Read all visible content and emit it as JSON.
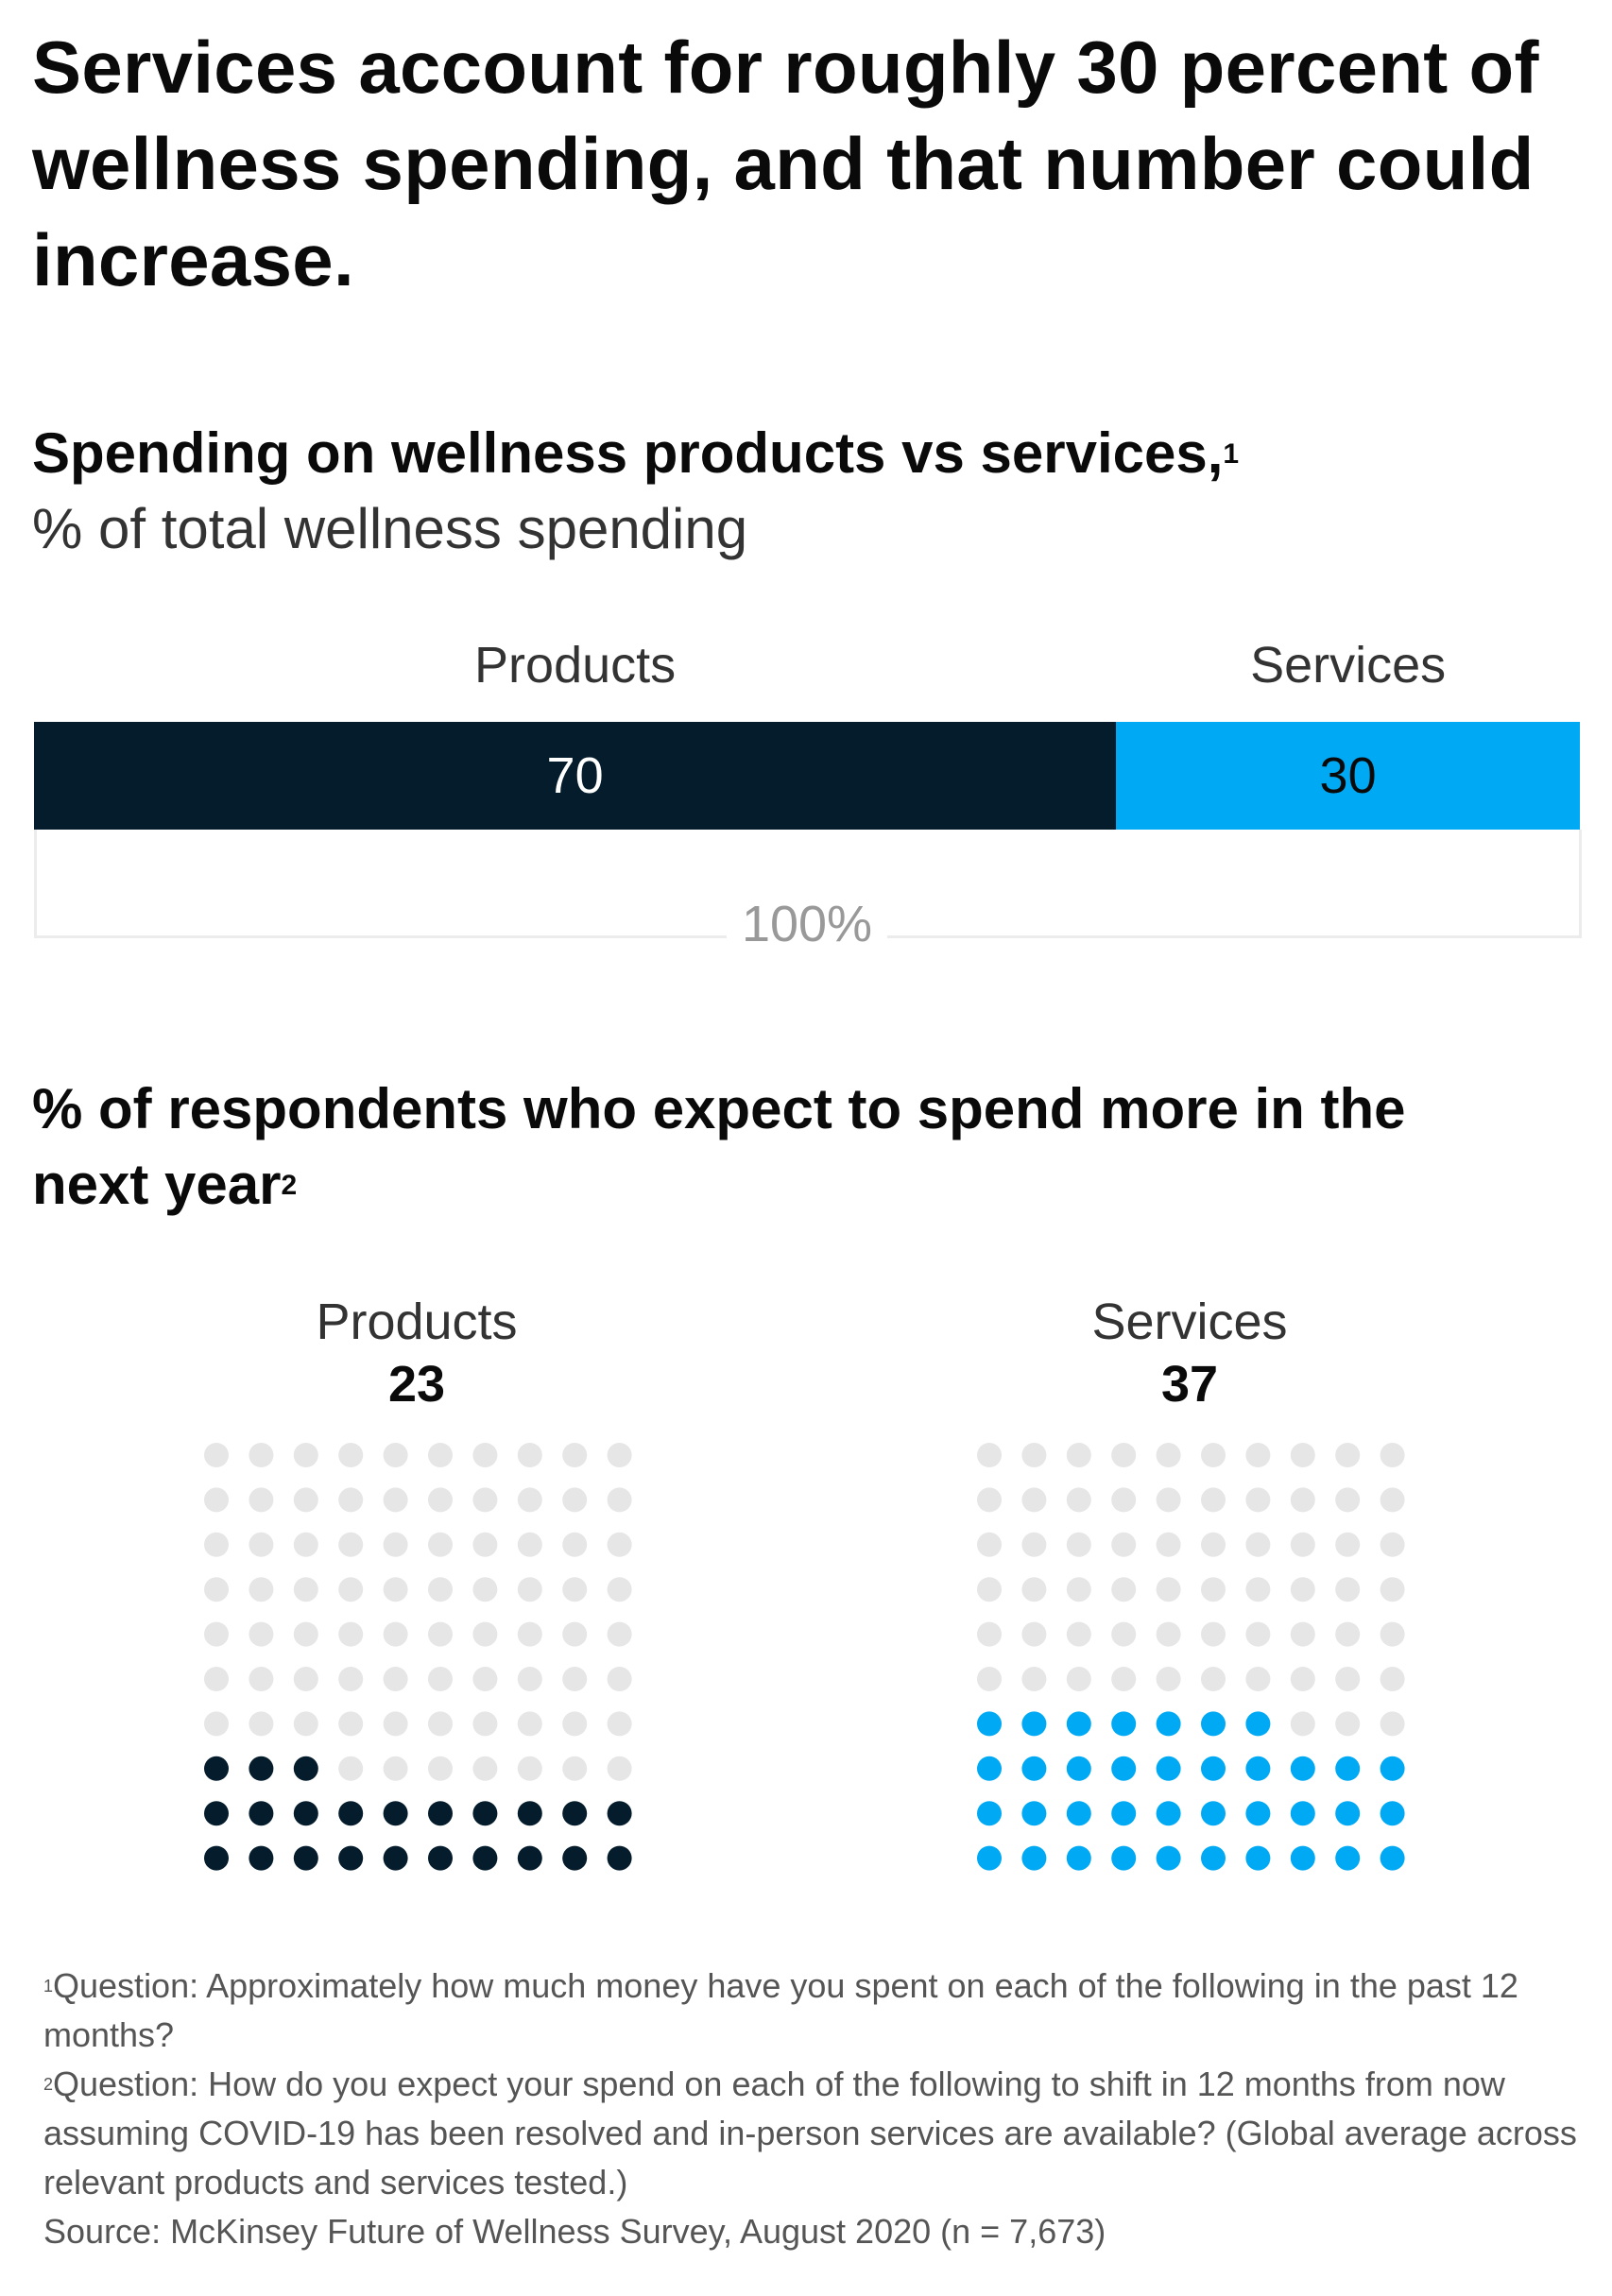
{
  "headline": "Services account for roughly 30 percent of wellness spending, and that number could increase.",
  "colors": {
    "products": "#051c2c",
    "services": "#00a9f4",
    "inactive": "#e6e6e6",
    "bracket": "#ececec"
  },
  "chart_data": [
    {
      "type": "bar",
      "stacked": true,
      "title": "Spending on wellness products vs services,",
      "title_footnote": "1",
      "subtitle": "% of total wellness spending",
      "categories": [
        "Products",
        "Services"
      ],
      "values": [
        70,
        30
      ],
      "value_labels": [
        "70",
        "30"
      ],
      "total_label": "100%"
    },
    {
      "type": "waffle",
      "title": "% of respondents who expect to spend more in the next year",
      "title_footnote": "2",
      "grid": {
        "columns": 10,
        "rows": 10
      },
      "series": [
        {
          "name": "Products",
          "value": 23,
          "value_label": "23"
        },
        {
          "name": "Services",
          "value": 37,
          "value_label": "37"
        }
      ]
    }
  ],
  "footnotes": [
    "Question: Approximately how much money have you spent on each of the following in the past 12 months?",
    "Question: How do you expect your spend on each of the following to shift in 12 months from now assuming COVID-19 has been resolved and in-person services are available? (Global average across relevant products and services tested.)"
  ],
  "footnote_marks": [
    "1",
    "2"
  ],
  "source": "Source: McKinsey Future of Wellness Survey, August 2020 (n = 7,673)"
}
